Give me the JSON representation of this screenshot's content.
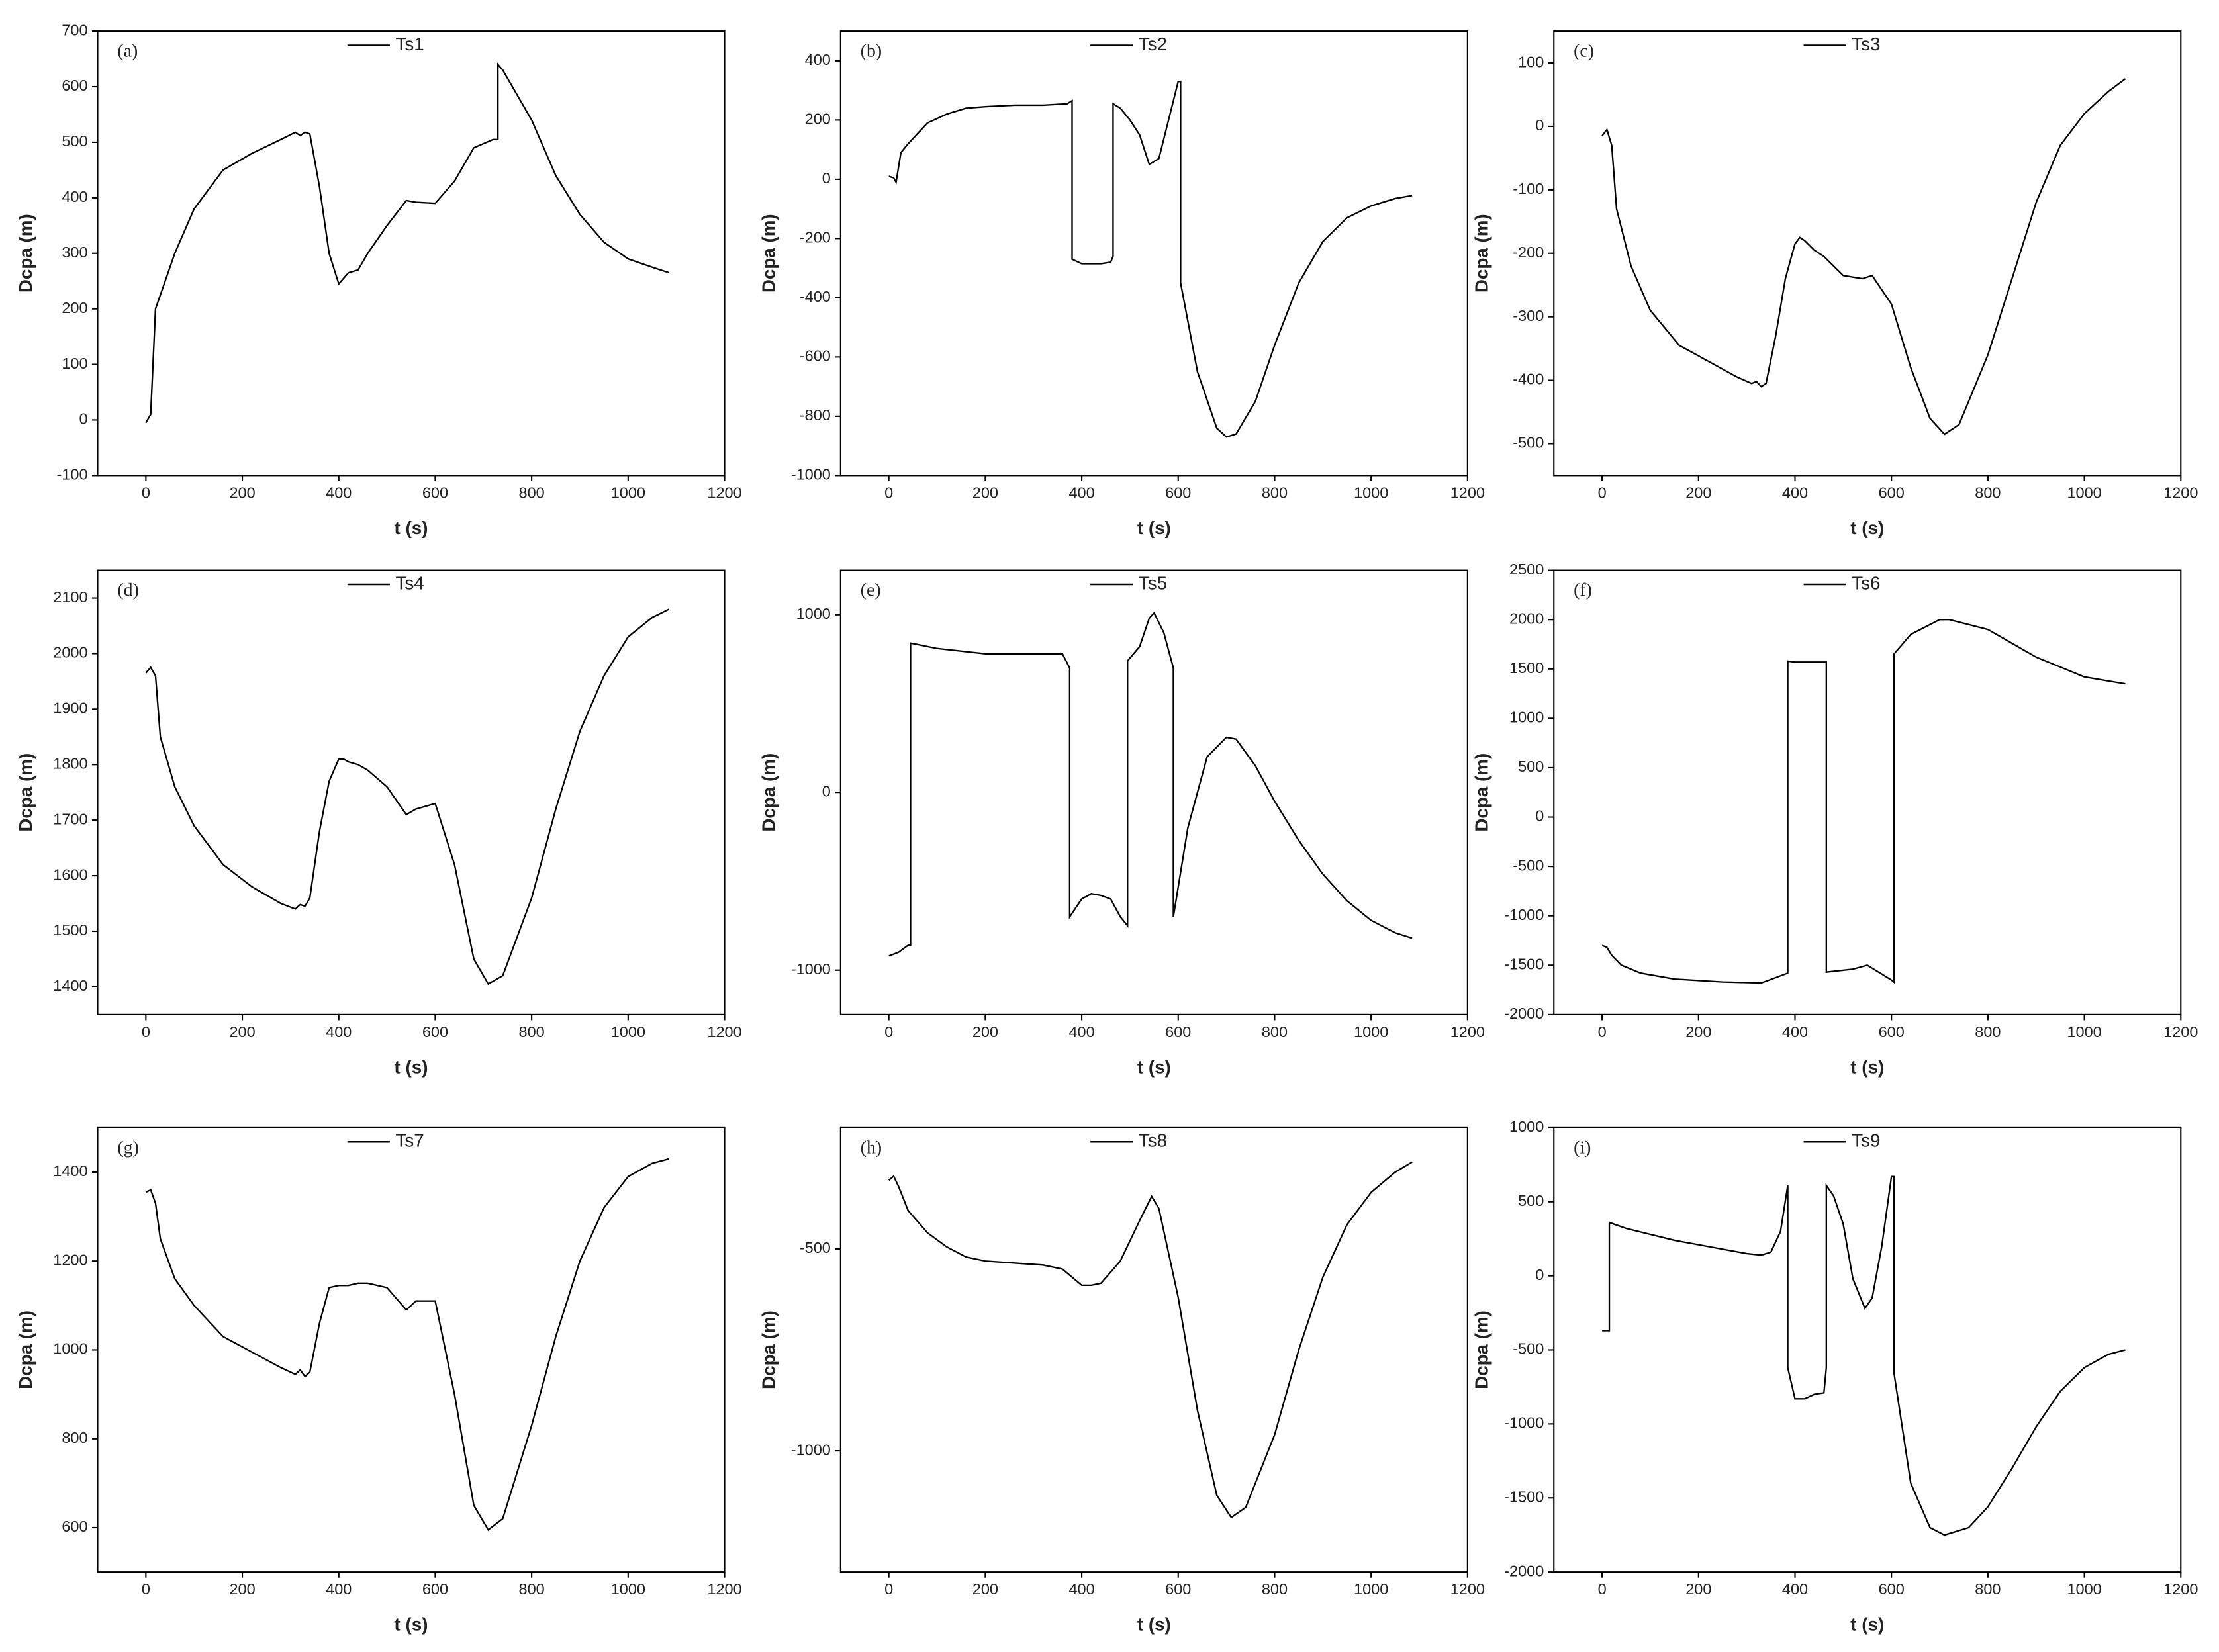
{
  "chart_data": [
    {
      "type": "line",
      "panel_label": "(a)",
      "xlabel": "t (s)",
      "ylabel": "Dcpa (m)",
      "x": [
        0,
        10,
        20,
        40,
        60,
        100,
        160,
        220,
        280,
        310,
        320,
        330,
        340,
        360,
        380,
        400,
        410,
        420,
        440,
        460,
        500,
        540,
        560,
        600,
        640,
        680,
        720,
        730,
        730,
        740,
        800,
        850,
        900,
        950,
        1000,
        1050,
        1085
      ],
      "series": [
        {
          "name": "Ts1",
          "color": "#000000",
          "values": [
            -5,
            10,
            200,
            250,
            300,
            380,
            450,
            480,
            505,
            518,
            512,
            518,
            515,
            420,
            300,
            245,
            255,
            265,
            270,
            300,
            350,
            395,
            392,
            390,
            430,
            490,
            505,
            505,
            640,
            630,
            540,
            440,
            370,
            320,
            290,
            275,
            265
          ]
        }
      ],
      "xlim": [
        -100,
        1200
      ],
      "xticks": [
        0,
        200,
        400,
        600,
        800,
        1000,
        1200
      ],
      "ylim": [
        -100,
        700
      ],
      "yticks": [
        -100,
        0,
        100,
        200,
        300,
        400,
        500,
        600,
        700
      ]
    },
    {
      "type": "line",
      "panel_label": "(b)",
      "xlabel": "t (s)",
      "ylabel": "Dcpa (m)",
      "x": [
        0,
        10,
        15,
        25,
        40,
        80,
        120,
        160,
        200,
        260,
        320,
        370,
        380,
        380,
        400,
        440,
        460,
        465,
        465,
        480,
        500,
        520,
        540,
        560,
        580,
        600,
        605,
        605,
        640,
        680,
        700,
        720,
        760,
        800,
        850,
        900,
        950,
        1000,
        1050,
        1085
      ],
      "series": [
        {
          "name": "Ts2",
          "color": "#000000",
          "values": [
            10,
            5,
            -10,
            90,
            120,
            190,
            220,
            240,
            245,
            250,
            250,
            255,
            265,
            -270,
            -285,
            -285,
            -280,
            -260,
            255,
            240,
            200,
            150,
            50,
            70,
            200,
            330,
            330,
            -350,
            -650,
            -840,
            -870,
            -860,
            -750,
            -560,
            -350,
            -210,
            -130,
            -90,
            -65,
            -55
          ]
        }
      ],
      "xlim": [
        -100,
        1200
      ],
      "xticks": [
        0,
        200,
        400,
        600,
        800,
        1000,
        1200
      ],
      "ylim": [
        -1000,
        500
      ],
      "yticks": [
        -1000,
        -800,
        -600,
        -400,
        -200,
        0,
        200,
        400
      ]
    },
    {
      "type": "line",
      "panel_label": "(c)",
      "xlabel": "t (s)",
      "ylabel": "Dcpa (m)",
      "x": [
        0,
        10,
        20,
        30,
        40,
        60,
        100,
        160,
        220,
        280,
        310,
        320,
        330,
        340,
        360,
        380,
        400,
        410,
        420,
        440,
        460,
        500,
        540,
        560,
        600,
        640,
        680,
        710,
        740,
        800,
        850,
        900,
        950,
        1000,
        1050,
        1085
      ],
      "series": [
        {
          "name": "Ts3",
          "color": "#000000",
          "values": [
            -15,
            -5,
            -30,
            -130,
            -160,
            -220,
            -290,
            -345,
            -370,
            -395,
            -405,
            -402,
            -410,
            -405,
            -330,
            -240,
            -185,
            -175,
            -180,
            -195,
            -205,
            -235,
            -240,
            -235,
            -280,
            -380,
            -460,
            -485,
            -470,
            -360,
            -240,
            -120,
            -30,
            20,
            55,
            75
          ]
        }
      ],
      "xlim": [
        -100,
        1200
      ],
      "xticks": [
        0,
        200,
        400,
        600,
        800,
        1000,
        1200
      ],
      "ylim": [
        -550,
        150
      ],
      "yticks": [
        -500,
        -400,
        -300,
        -200,
        -100,
        0,
        100
      ]
    },
    {
      "type": "line",
      "panel_label": "(d)",
      "xlabel": "t (s)",
      "ylabel": "Dcpa (m)",
      "x": [
        0,
        10,
        20,
        30,
        40,
        60,
        100,
        160,
        220,
        280,
        310,
        320,
        330,
        340,
        360,
        380,
        400,
        410,
        420,
        440,
        460,
        500,
        540,
        560,
        600,
        640,
        680,
        710,
        740,
        800,
        850,
        900,
        950,
        1000,
        1050,
        1085
      ],
      "series": [
        {
          "name": "Ts4",
          "color": "#000000",
          "values": [
            1965,
            1975,
            1960,
            1850,
            1820,
            1760,
            1690,
            1620,
            1580,
            1550,
            1540,
            1548,
            1545,
            1560,
            1680,
            1770,
            1810,
            1810,
            1805,
            1800,
            1790,
            1760,
            1710,
            1720,
            1730,
            1620,
            1450,
            1405,
            1420,
            1560,
            1720,
            1860,
            1960,
            2030,
            2065,
            2080
          ]
        }
      ],
      "xlim": [
        -100,
        1200
      ],
      "xticks": [
        0,
        200,
        400,
        600,
        800,
        1000,
        1200
      ],
      "ylim": [
        1350,
        2150
      ],
      "yticks": [
        1400,
        1500,
        1600,
        1700,
        1800,
        1900,
        2000,
        2100
      ]
    },
    {
      "type": "line",
      "panel_label": "(e)",
      "xlabel": "t (s)",
      "ylabel": "Dcpa (m)",
      "x": [
        0,
        20,
        40,
        45,
        45,
        100,
        200,
        300,
        360,
        375,
        375,
        400,
        420,
        440,
        460,
        480,
        495,
        495,
        520,
        540,
        550,
        570,
        590,
        590,
        620,
        660,
        700,
        720,
        760,
        800,
        850,
        900,
        950,
        1000,
        1050,
        1085
      ],
      "series": [
        {
          "name": "Ts5",
          "color": "#000000",
          "values": [
            -920,
            -900,
            -860,
            -860,
            840,
            810,
            780,
            780,
            780,
            700,
            -700,
            -600,
            -570,
            -580,
            -600,
            -700,
            -750,
            740,
            820,
            980,
            1010,
            900,
            700,
            -700,
            -200,
            200,
            310,
            300,
            150,
            -50,
            -270,
            -460,
            -610,
            -720,
            -790,
            -820
          ]
        }
      ],
      "xlim": [
        -100,
        1200
      ],
      "xticks": [
        0,
        200,
        400,
        600,
        800,
        1000,
        1200
      ],
      "ylim": [
        -1250,
        1250
      ],
      "yticks": [
        -1000,
        0,
        1000
      ]
    },
    {
      "type": "line",
      "panel_label": "(f)",
      "xlabel": "t (s)",
      "ylabel": "Dcpa (m)",
      "x": [
        0,
        10,
        20,
        40,
        80,
        150,
        250,
        330,
        385,
        385,
        400,
        440,
        460,
        465,
        465,
        520,
        550,
        600,
        605,
        605,
        640,
        700,
        720,
        800,
        900,
        1000,
        1085
      ],
      "series": [
        {
          "name": "Ts6",
          "color": "#000000",
          "values": [
            -1300,
            -1320,
            -1400,
            -1500,
            -1580,
            -1640,
            -1670,
            -1680,
            -1580,
            1580,
            1570,
            1570,
            1570,
            1570,
            -1570,
            -1540,
            -1500,
            -1650,
            -1670,
            1650,
            1850,
            2000,
            2000,
            1900,
            1620,
            1420,
            1350
          ]
        }
      ],
      "xlim": [
        -100,
        1200
      ],
      "xticks": [
        0,
        200,
        400,
        600,
        800,
        1000,
        1200
      ],
      "ylim": [
        -2000,
        2500
      ],
      "yticks": [
        -2000,
        -1500,
        -1000,
        -500,
        0,
        500,
        1000,
        1500,
        2000,
        2500
      ]
    },
    {
      "type": "line",
      "panel_label": "(g)",
      "xlabel": "t (s)",
      "ylabel": "Dcpa (m)",
      "x": [
        0,
        10,
        20,
        30,
        40,
        60,
        100,
        160,
        220,
        280,
        310,
        320,
        330,
        340,
        360,
        380,
        400,
        410,
        420,
        440,
        460,
        500,
        540,
        560,
        600,
        640,
        680,
        710,
        740,
        800,
        850,
        900,
        950,
        1000,
        1050,
        1085
      ],
      "series": [
        {
          "name": "Ts7",
          "color": "#000000",
          "values": [
            1355,
            1360,
            1330,
            1250,
            1220,
            1160,
            1100,
            1030,
            995,
            960,
            945,
            955,
            940,
            950,
            1060,
            1140,
            1145,
            1145,
            1145,
            1150,
            1150,
            1140,
            1090,
            1110,
            1110,
            900,
            650,
            595,
            620,
            830,
            1030,
            1200,
            1320,
            1390,
            1420,
            1430
          ]
        }
      ],
      "xlim": [
        -100,
        1200
      ],
      "xticks": [
        0,
        200,
        400,
        600,
        800,
        1000,
        1200
      ],
      "ylim": [
        500,
        1500
      ],
      "yticks": [
        600,
        800,
        1000,
        1200,
        1400
      ]
    },
    {
      "type": "line",
      "panel_label": "(h)",
      "xlabel": "t (s)",
      "ylabel": "Dcpa (m)",
      "x": [
        0,
        10,
        20,
        40,
        80,
        120,
        160,
        200,
        260,
        320,
        360,
        400,
        420,
        440,
        480,
        520,
        545,
        560,
        600,
        640,
        680,
        710,
        740,
        800,
        850,
        900,
        950,
        1000,
        1050,
        1085
      ],
      "series": [
        {
          "name": "Ts8",
          "color": "#000000",
          "values": [
            -330,
            -320,
            -345,
            -405,
            -460,
            -495,
            -520,
            -530,
            -535,
            -540,
            -550,
            -590,
            -590,
            -585,
            -530,
            -430,
            -370,
            -400,
            -620,
            -900,
            -1110,
            -1165,
            -1140,
            -960,
            -750,
            -570,
            -440,
            -360,
            -310,
            -285
          ]
        }
      ],
      "xlim": [
        -100,
        1200
      ],
      "xticks": [
        0,
        200,
        400,
        600,
        800,
        1000,
        1200
      ],
      "ylim": [
        -1300,
        -200
      ],
      "yticks": [
        -1000,
        -500
      ]
    },
    {
      "type": "line",
      "panel_label": "(i)",
      "xlabel": "t (s)",
      "ylabel": "Dcpa (m)",
      "x": [
        0,
        10,
        15,
        15,
        50,
        100,
        150,
        200,
        250,
        300,
        330,
        350,
        370,
        385,
        385,
        400,
        420,
        440,
        460,
        465,
        465,
        480,
        500,
        520,
        545,
        560,
        580,
        600,
        605,
        605,
        640,
        680,
        710,
        760,
        800,
        850,
        900,
        950,
        1000,
        1050,
        1085
      ],
      "series": [
        {
          "name": "Ts9",
          "color": "#000000",
          "values": [
            -370,
            -370,
            -370,
            360,
            320,
            280,
            240,
            210,
            180,
            150,
            140,
            160,
            300,
            610,
            -620,
            -830,
            -830,
            -800,
            -790,
            -620,
            610,
            540,
            350,
            -20,
            -220,
            -150,
            200,
            670,
            670,
            -650,
            -1400,
            -1700,
            -1750,
            -1700,
            -1560,
            -1300,
            -1020,
            -780,
            -620,
            -530,
            -500
          ]
        }
      ],
      "xlim": [
        -100,
        1200
      ],
      "xticks": [
        0,
        200,
        400,
        600,
        800,
        1000,
        1200
      ],
      "ylim": [
        -2000,
        1000
      ],
      "yticks": [
        -2000,
        -1500,
        -1000,
        -500,
        0,
        500,
        1000
      ]
    }
  ]
}
